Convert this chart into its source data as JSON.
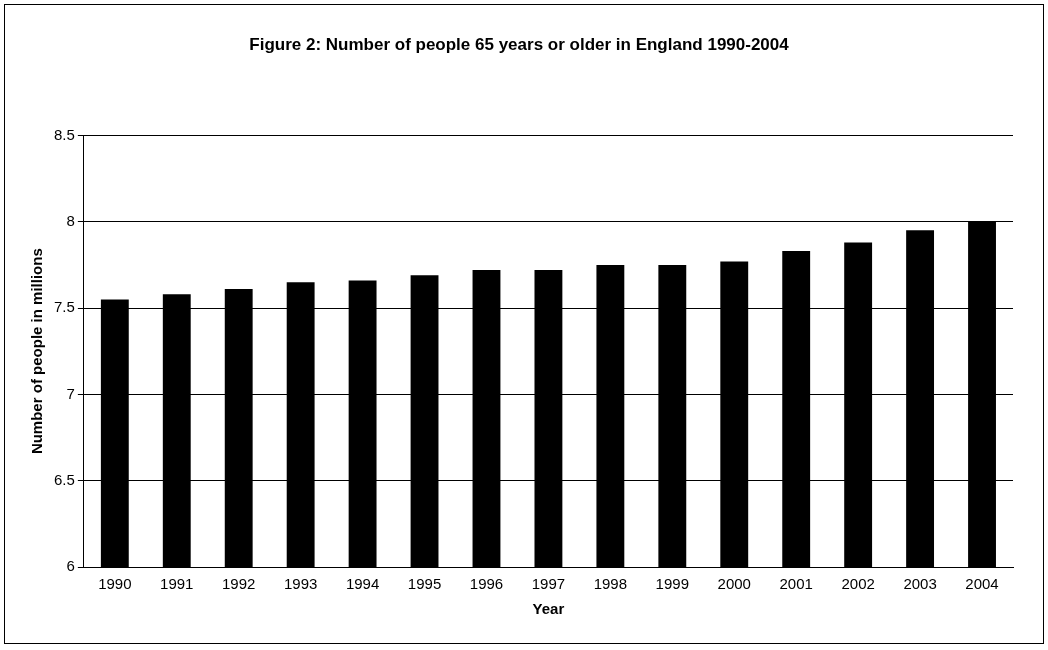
{
  "chart_data": {
    "type": "bar",
    "title": "Figure 2: Number of people 65 years or older in England 1990-2004",
    "xlabel": "Year",
    "ylabel": "Number of people in millions",
    "categories": [
      "1990",
      "1991",
      "1992",
      "1993",
      "1994",
      "1995",
      "1996",
      "1997",
      "1998",
      "1999",
      "2000",
      "2001",
      "2002",
      "2003",
      "2004"
    ],
    "values": [
      7.55,
      7.58,
      7.61,
      7.65,
      7.66,
      7.69,
      7.72,
      7.72,
      7.75,
      7.75,
      7.77,
      7.83,
      7.88,
      7.95,
      8.0
    ],
    "color": "#000000",
    "ylim": [
      6,
      8.5
    ],
    "yticks": [
      6,
      6.5,
      7,
      7.5,
      8,
      8.5
    ],
    "grid": "y",
    "legend": false
  }
}
